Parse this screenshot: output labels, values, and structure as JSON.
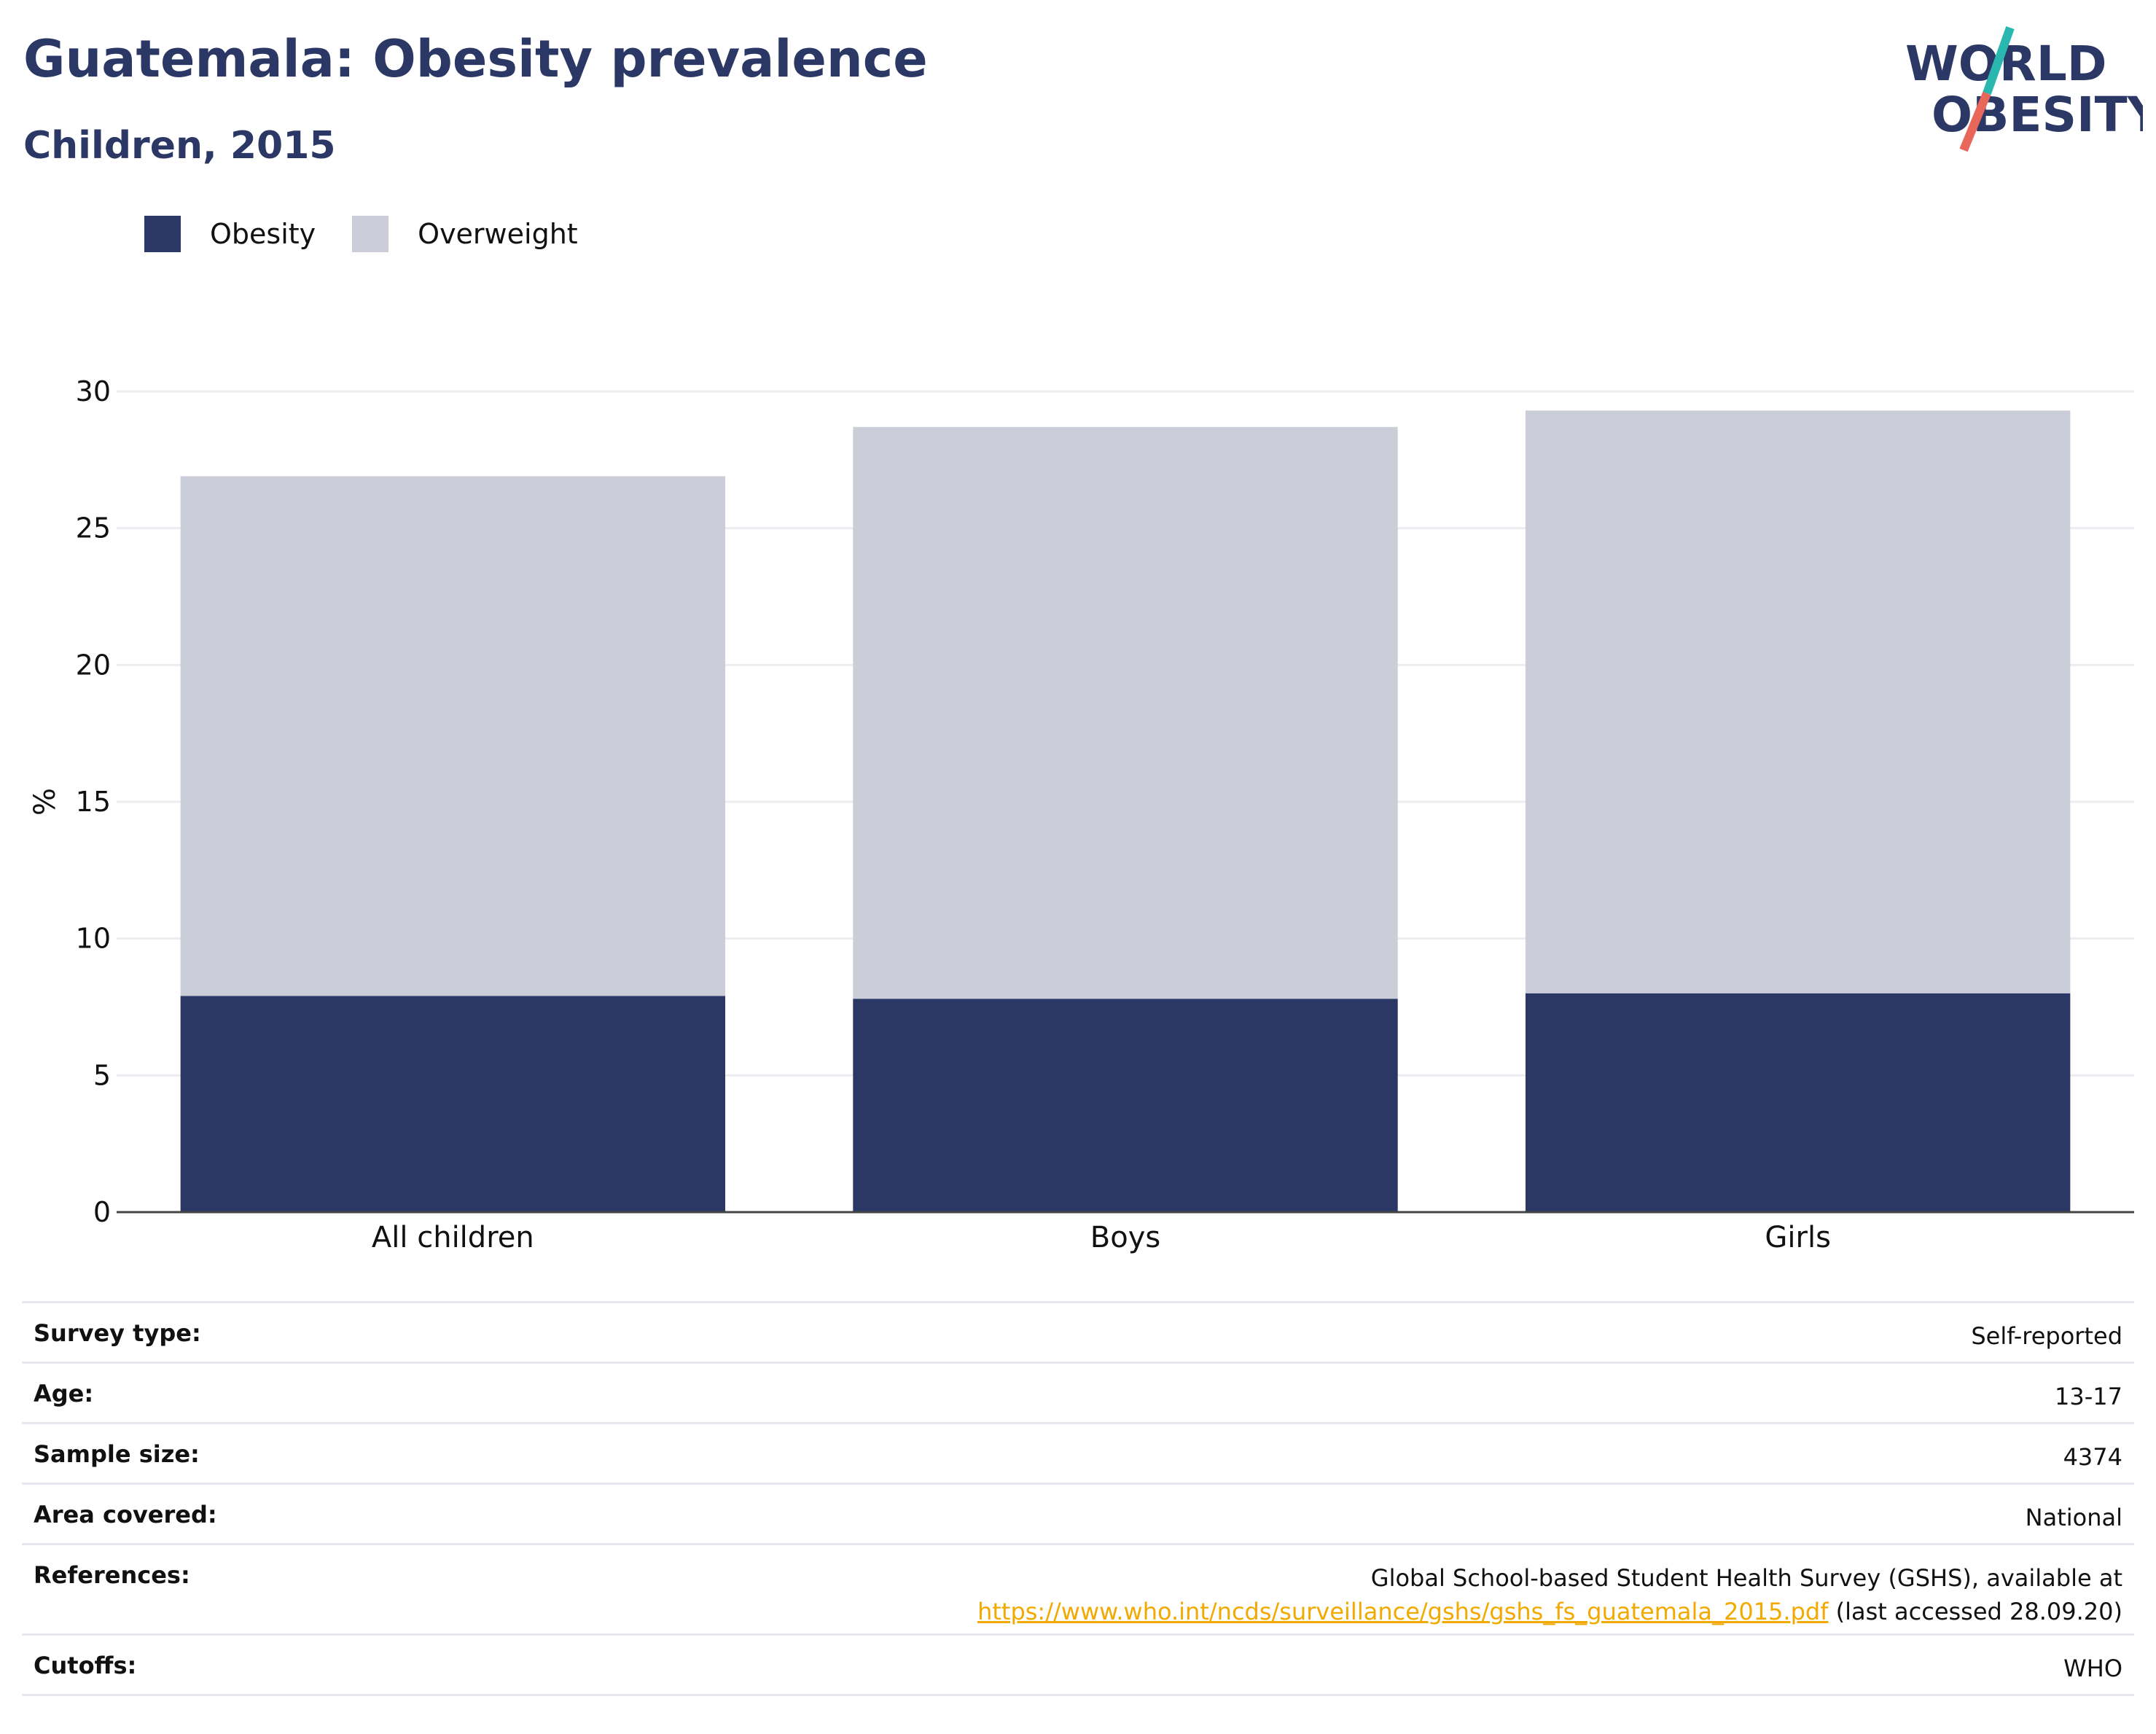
{
  "header": {
    "title": "Guatemala: Obesity prevalence",
    "subtitle": "Children, 2015"
  },
  "logo": {
    "line1": "WORLD",
    "line2": "OBESITY",
    "icon": "world-obesity-logo"
  },
  "colors": {
    "obesity": "#2b3764",
    "overweight": "#cbcdd9",
    "accent_teal": "#2ab7b0",
    "accent_red": "#e8665a",
    "link": "#f2a900"
  },
  "legend": {
    "obesity": "Obesity",
    "overweight": "Overweight"
  },
  "chart_data": {
    "type": "bar",
    "stacked": true,
    "categories": [
      "All children",
      "Boys",
      "Girls"
    ],
    "series": [
      {
        "name": "Obesity",
        "values": [
          7.9,
          7.8,
          8.0
        ]
      },
      {
        "name": "Overweight",
        "values": [
          19.0,
          20.9,
          21.3
        ]
      }
    ],
    "title": "Guatemala: Obesity prevalence",
    "subtitle": "Children, 2015",
    "ylabel": "%",
    "ylim": [
      0,
      30
    ],
    "yticks": [
      0,
      5,
      10,
      15,
      20,
      25,
      30
    ],
    "grid": true,
    "legend_position": "top-left"
  },
  "meta": {
    "survey_type": {
      "label": "Survey type:",
      "value": "Self-reported"
    },
    "age": {
      "label": "Age:",
      "value": "13-17"
    },
    "sample_size": {
      "label": "Sample size:",
      "value": "4374"
    },
    "area": {
      "label": "Area covered:",
      "value": "National"
    },
    "references": {
      "label": "References:",
      "line1": "Global School-based Student Health Survey (GSHS), available at",
      "link": "https://www.who.int/ncds/surveillance/gshs/gshs_fs_guatemala_2015.pdf",
      "suffix": " (last accessed 28.09.20)"
    },
    "cutoffs": {
      "label": "Cutoffs:",
      "value": "WHO"
    }
  }
}
